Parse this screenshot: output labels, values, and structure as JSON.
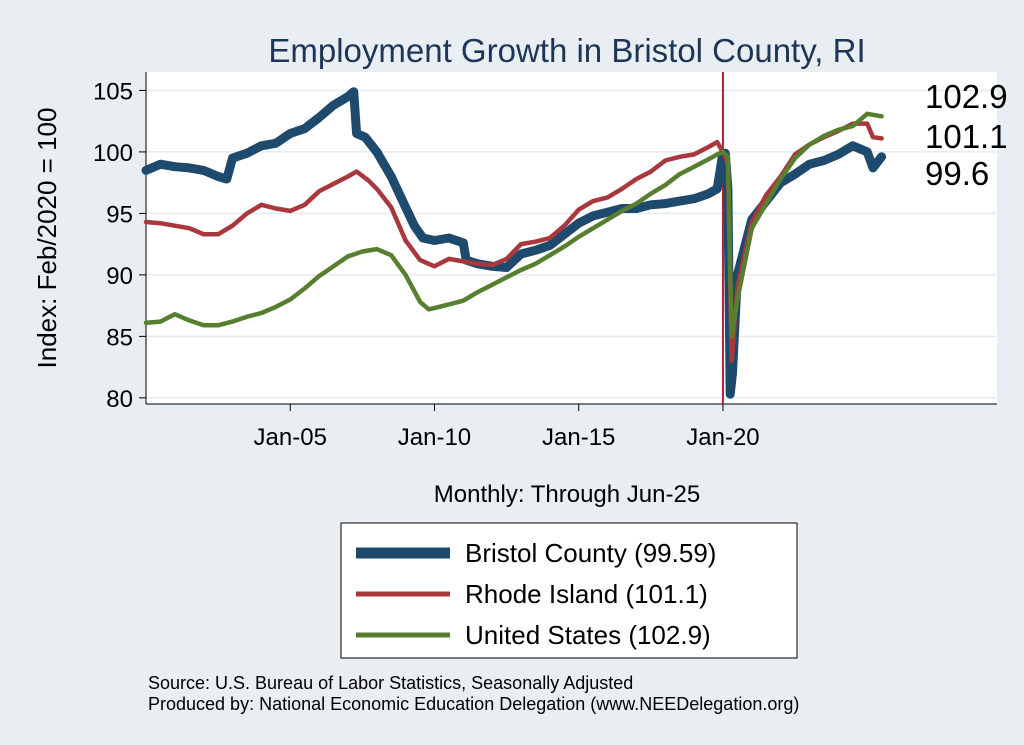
{
  "chart_data": {
    "type": "line",
    "title": "Employment Growth in Bristol  County, RI",
    "ylabel": "Index: Feb/2020 = 100",
    "xlabel": "Monthly: Through Jun-25",
    "ylim": [
      79.5,
      106.5
    ],
    "yticks": [
      80,
      85,
      90,
      95,
      100,
      105
    ],
    "xlim": [
      2000.0,
      2029.5
    ],
    "xticks": [
      {
        "t": 2005.0,
        "label": "Jan-05"
      },
      {
        "t": 2010.0,
        "label": "Jan-10"
      },
      {
        "t": 2015.0,
        "label": "Jan-15"
      },
      {
        "t": 2020.0,
        "label": "Jan-20"
      }
    ],
    "reference_line": {
      "t": 2020.0,
      "color": "#b0203a"
    },
    "grid": "horizontal",
    "series": [
      {
        "name": "Bristol  County (99.59)",
        "color": "#1e4a6e",
        "end_label": "99.6",
        "points": [
          [
            2000.0,
            98.5
          ],
          [
            2000.5,
            99.0
          ],
          [
            2001.0,
            98.8
          ],
          [
            2001.5,
            98.7
          ],
          [
            2002.0,
            98.5
          ],
          [
            2002.5,
            98.0
          ],
          [
            2002.8,
            97.8
          ],
          [
            2003.0,
            99.5
          ],
          [
            2003.5,
            99.9
          ],
          [
            2004.0,
            100.5
          ],
          [
            2004.5,
            100.7
          ],
          [
            2005.0,
            101.5
          ],
          [
            2005.5,
            101.9
          ],
          [
            2006.0,
            102.8
          ],
          [
            2006.5,
            103.8
          ],
          [
            2007.0,
            104.5
          ],
          [
            2007.2,
            104.9
          ],
          [
            2007.3,
            101.5
          ],
          [
            2007.6,
            101.2
          ],
          [
            2008.0,
            100.0
          ],
          [
            2008.5,
            98.0
          ],
          [
            2009.0,
            95.5
          ],
          [
            2009.3,
            94.0
          ],
          [
            2009.6,
            93.0
          ],
          [
            2010.0,
            92.8
          ],
          [
            2010.5,
            93.0
          ],
          [
            2011.0,
            92.6
          ],
          [
            2011.1,
            91.2
          ],
          [
            2011.5,
            90.9
          ],
          [
            2012.0,
            90.7
          ],
          [
            2012.5,
            90.6
          ],
          [
            2013.0,
            91.7
          ],
          [
            2013.5,
            92.0
          ],
          [
            2014.0,
            92.4
          ],
          [
            2014.5,
            93.3
          ],
          [
            2015.0,
            94.2
          ],
          [
            2015.5,
            94.8
          ],
          [
            2016.0,
            95.1
          ],
          [
            2016.5,
            95.4
          ],
          [
            2017.0,
            95.4
          ],
          [
            2017.5,
            95.7
          ],
          [
            2018.0,
            95.8
          ],
          [
            2018.5,
            96.0
          ],
          [
            2019.0,
            96.2
          ],
          [
            2019.5,
            96.6
          ],
          [
            2019.8,
            97.0
          ],
          [
            2020.0,
            99.9
          ],
          [
            2020.08,
            99.9
          ],
          [
            2020.17,
            97.0
          ],
          [
            2020.25,
            80.3
          ],
          [
            2020.33,
            82.0
          ],
          [
            2020.5,
            90.0
          ],
          [
            2021.0,
            94.5
          ],
          [
            2021.5,
            96.0
          ],
          [
            2022.0,
            97.5
          ],
          [
            2022.5,
            98.2
          ],
          [
            2023.0,
            99.0
          ],
          [
            2023.5,
            99.3
          ],
          [
            2024.0,
            99.8
          ],
          [
            2024.5,
            100.5
          ],
          [
            2025.0,
            100.0
          ],
          [
            2025.2,
            98.7
          ],
          [
            2025.5,
            99.6
          ]
        ]
      },
      {
        "name": "Rhode Island (101.1)",
        "color": "#a8373e",
        "end_label": "101.1",
        "points": [
          [
            2000.0,
            94.3
          ],
          [
            2000.5,
            94.2
          ],
          [
            2001.0,
            94.0
          ],
          [
            2001.5,
            93.8
          ],
          [
            2002.0,
            93.3
          ],
          [
            2002.5,
            93.3
          ],
          [
            2003.0,
            94.0
          ],
          [
            2003.5,
            95.0
          ],
          [
            2004.0,
            95.7
          ],
          [
            2004.5,
            95.4
          ],
          [
            2005.0,
            95.2
          ],
          [
            2005.5,
            95.7
          ],
          [
            2006.0,
            96.8
          ],
          [
            2006.5,
            97.4
          ],
          [
            2007.0,
            98.0
          ],
          [
            2007.3,
            98.4
          ],
          [
            2007.7,
            97.7
          ],
          [
            2008.0,
            97.0
          ],
          [
            2008.5,
            95.5
          ],
          [
            2009.0,
            92.8
          ],
          [
            2009.5,
            91.2
          ],
          [
            2010.0,
            90.7
          ],
          [
            2010.5,
            91.3
          ],
          [
            2011.0,
            91.1
          ],
          [
            2011.5,
            90.9
          ],
          [
            2012.0,
            90.8
          ],
          [
            2012.5,
            91.3
          ],
          [
            2013.0,
            92.5
          ],
          [
            2013.5,
            92.7
          ],
          [
            2014.0,
            93.0
          ],
          [
            2014.5,
            94.0
          ],
          [
            2015.0,
            95.3
          ],
          [
            2015.5,
            96.0
          ],
          [
            2016.0,
            96.3
          ],
          [
            2016.5,
            97.0
          ],
          [
            2017.0,
            97.8
          ],
          [
            2017.5,
            98.4
          ],
          [
            2018.0,
            99.3
          ],
          [
            2018.5,
            99.6
          ],
          [
            2019.0,
            99.8
          ],
          [
            2019.5,
            100.4
          ],
          [
            2019.8,
            100.8
          ],
          [
            2020.0,
            100.0
          ],
          [
            2020.17,
            99.0
          ],
          [
            2020.3,
            83.0
          ],
          [
            2020.5,
            89.0
          ],
          [
            2021.0,
            94.3
          ],
          [
            2021.5,
            96.5
          ],
          [
            2022.0,
            98.0
          ],
          [
            2022.5,
            99.8
          ],
          [
            2023.0,
            100.6
          ],
          [
            2023.5,
            101.2
          ],
          [
            2024.0,
            101.7
          ],
          [
            2024.5,
            102.3
          ],
          [
            2025.0,
            102.3
          ],
          [
            2025.2,
            101.2
          ],
          [
            2025.5,
            101.1
          ]
        ]
      },
      {
        "name": "United States (102.9)",
        "color": "#587f30",
        "end_label": "102.9",
        "points": [
          [
            2000.0,
            86.1
          ],
          [
            2000.5,
            86.2
          ],
          [
            2001.0,
            86.8
          ],
          [
            2001.5,
            86.3
          ],
          [
            2002.0,
            85.9
          ],
          [
            2002.5,
            85.9
          ],
          [
            2003.0,
            86.2
          ],
          [
            2003.5,
            86.6
          ],
          [
            2004.0,
            86.9
          ],
          [
            2004.5,
            87.4
          ],
          [
            2005.0,
            88.0
          ],
          [
            2005.5,
            88.9
          ],
          [
            2006.0,
            89.9
          ],
          [
            2006.5,
            90.7
          ],
          [
            2007.0,
            91.5
          ],
          [
            2007.5,
            91.9
          ],
          [
            2008.0,
            92.1
          ],
          [
            2008.5,
            91.6
          ],
          [
            2009.0,
            90.0
          ],
          [
            2009.5,
            87.8
          ],
          [
            2009.8,
            87.2
          ],
          [
            2010.0,
            87.3
          ],
          [
            2010.5,
            87.6
          ],
          [
            2011.0,
            87.9
          ],
          [
            2011.5,
            88.6
          ],
          [
            2012.0,
            89.2
          ],
          [
            2012.5,
            89.8
          ],
          [
            2013.0,
            90.4
          ],
          [
            2013.5,
            90.9
          ],
          [
            2014.0,
            91.6
          ],
          [
            2014.5,
            92.3
          ],
          [
            2015.0,
            93.1
          ],
          [
            2015.5,
            93.8
          ],
          [
            2016.0,
            94.5
          ],
          [
            2016.5,
            95.2
          ],
          [
            2017.0,
            95.8
          ],
          [
            2017.5,
            96.6
          ],
          [
            2018.0,
            97.3
          ],
          [
            2018.5,
            98.2
          ],
          [
            2019.0,
            98.8
          ],
          [
            2019.5,
            99.4
          ],
          [
            2019.8,
            99.8
          ],
          [
            2020.0,
            100.0
          ],
          [
            2020.17,
            99.6
          ],
          [
            2020.3,
            85.0
          ],
          [
            2020.5,
            88.0
          ],
          [
            2021.0,
            93.8
          ],
          [
            2021.5,
            95.8
          ],
          [
            2022.0,
            97.8
          ],
          [
            2022.5,
            99.5
          ],
          [
            2023.0,
            100.6
          ],
          [
            2023.5,
            101.3
          ],
          [
            2024.0,
            101.8
          ],
          [
            2024.5,
            102.1
          ],
          [
            2025.0,
            103.1
          ],
          [
            2025.5,
            102.9
          ]
        ]
      }
    ]
  },
  "notes": {
    "source": "Source: U.S. Bureau of Labor Statistics, Seasonally Adjusted",
    "produced_by": "Produced by: National Economic Education Delegation (www.NEEDelegation.org)"
  }
}
